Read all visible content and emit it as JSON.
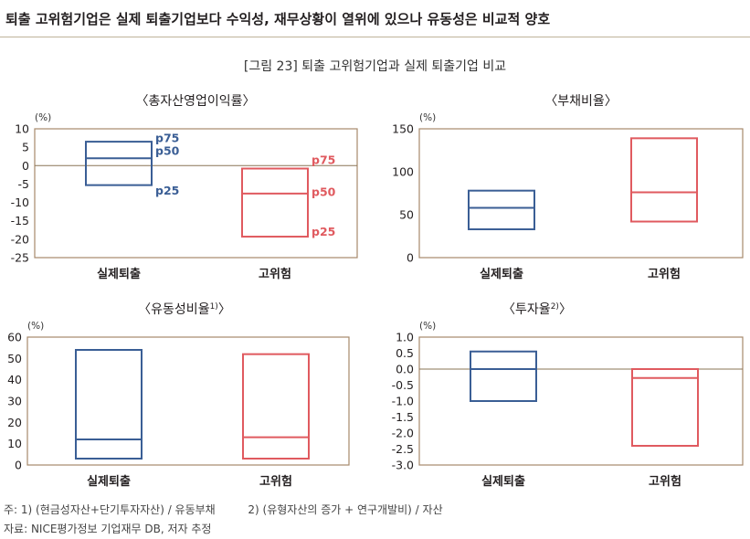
{
  "header": {
    "title": "퇴출 고위험기업은 실제 퇴출기업보다 수익성, 재무상황이 열위에 있으나 유동성은 비교적 양호"
  },
  "figure_title": "[그림 23] 퇴출 고위험기업과 실제 퇴출기업 비교",
  "colors": {
    "actual": "#3a5e95",
    "high_risk": "#e05a5f",
    "frame": "#a6896b",
    "zero": "#8a7456"
  },
  "notes": {
    "line1a": "주: 1) (현금성자산+단기투자자산) / 유동부채",
    "line1b": "2) (유형자산의 증가 + 연구개발비) / 자산",
    "line2": "자료: NICE평가정보 기업재무 DB, 저자 추정"
  },
  "chart_data": [
    {
      "type": "boxplot",
      "title": "〈총자산영업이익률〉",
      "unit": "(%)",
      "ylim": [
        -25,
        10
      ],
      "yticks": [
        10,
        5,
        0,
        -5,
        -10,
        -15,
        -20,
        -25
      ],
      "categories": [
        "실제퇴출",
        "고위험"
      ],
      "series": [
        {
          "category": "실제퇴출",
          "p75": 6.5,
          "p50": 2.0,
          "p25": -5.3
        },
        {
          "category": "고위험",
          "p75": -0.8,
          "p50": -7.6,
          "p25": -19.3
        }
      ],
      "annotations": [
        {
          "text": "p75",
          "series": 0,
          "value": 7.7
        },
        {
          "text": "p50",
          "series": 0,
          "value": 4.2
        },
        {
          "text": "p25",
          "series": 0,
          "value": -6.6
        },
        {
          "text": "p75",
          "series": 1,
          "value": 1.7
        },
        {
          "text": "p50",
          "series": 1,
          "value": -7.0
        },
        {
          "text": "p25",
          "series": 1,
          "value": -17.8
        }
      ]
    },
    {
      "type": "boxplot",
      "title": "〈부채비율〉",
      "unit": "(%)",
      "ylim": [
        0,
        150
      ],
      "yticks": [
        150,
        100,
        50,
        0
      ],
      "categories": [
        "실제퇴출",
        "고위험"
      ],
      "series": [
        {
          "category": "실제퇴출",
          "p75": 78,
          "p50": 58,
          "p25": 33
        },
        {
          "category": "고위험",
          "p75": 139,
          "p50": 76,
          "p25": 42
        }
      ]
    },
    {
      "type": "boxplot",
      "title": "〈유동성비율",
      "title_sup": "1)",
      "title_end": "〉",
      "unit": "(%)",
      "ylim": [
        0,
        60
      ],
      "yticks": [
        60,
        50,
        40,
        30,
        20,
        10,
        0
      ],
      "categories": [
        "실제퇴출",
        "고위험"
      ],
      "series": [
        {
          "category": "실제퇴출",
          "p75": 54,
          "p50": 12,
          "p25": 3
        },
        {
          "category": "고위험",
          "p75": 52,
          "p50": 13,
          "p25": 3
        }
      ]
    },
    {
      "type": "boxplot",
      "title": "〈투자율",
      "title_sup": "2)",
      "title_end": "〉",
      "unit": "(%)",
      "ylim": [
        -3.0,
        1.0
      ],
      "yticks": [
        "1.0",
        "0.5",
        "0.0",
        "-0.5",
        "-1.0",
        "-1.5",
        "-2.0",
        "-2.5",
        "-3.0"
      ],
      "categories": [
        "실제퇴출",
        "고위험"
      ],
      "series": [
        {
          "category": "실제퇴출",
          "p75": 0.55,
          "p50": 0.0,
          "p25": -1.0
        },
        {
          "category": "고위험",
          "p75": 0.0,
          "p50": -0.28,
          "p25": -2.4
        }
      ]
    }
  ]
}
